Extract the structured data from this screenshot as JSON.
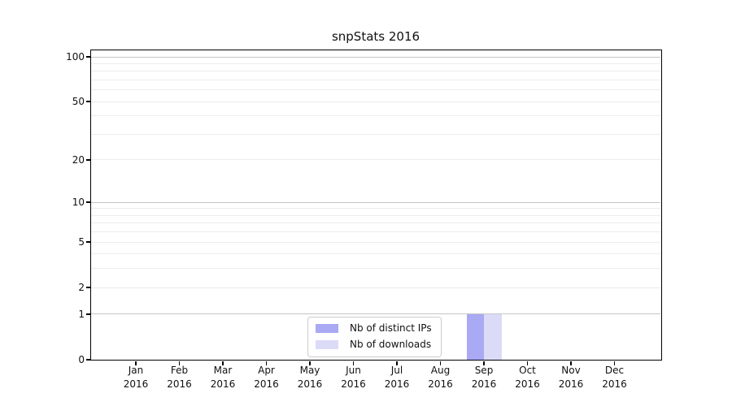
{
  "title": "snpStats 2016",
  "chart_data": {
    "type": "bar",
    "title": "snpStats 2016",
    "categories": [
      "Jan",
      "Feb",
      "Mar",
      "Apr",
      "May",
      "Jun",
      "Jul",
      "Aug",
      "Sep",
      "Oct",
      "Nov",
      "Dec"
    ],
    "year": "2016",
    "series": [
      {
        "name": "Nb of distinct IPs",
        "color": "#a9a9f4",
        "values": [
          0,
          0,
          0,
          0,
          0,
          0,
          0,
          0,
          1,
          0,
          0,
          0
        ]
      },
      {
        "name": "Nb of downloads",
        "color": "#dbdbf8",
        "values": [
          0,
          0,
          0,
          0,
          0,
          0,
          0,
          0,
          1,
          0,
          0,
          0
        ]
      }
    ],
    "xlabel": "",
    "ylabel": "",
    "yscale": "log1p",
    "ylim": [
      0,
      100
    ],
    "y_tick_values": [
      0,
      1,
      2,
      5,
      10,
      20,
      50,
      100
    ],
    "y_major_gridlines": [
      1,
      10,
      100
    ],
    "y_minor_gridlines": [
      2,
      3,
      4,
      5,
      6,
      7,
      8,
      9,
      20,
      30,
      40,
      50,
      60,
      70,
      80,
      90
    ],
    "grid": true,
    "legend_position": "bottom-center",
    "colors": {
      "major_grid": "#c6c6c6",
      "minor_grid": "#ececec",
      "axis": "#000000",
      "text": "#111111",
      "background": "#ffffff"
    }
  }
}
